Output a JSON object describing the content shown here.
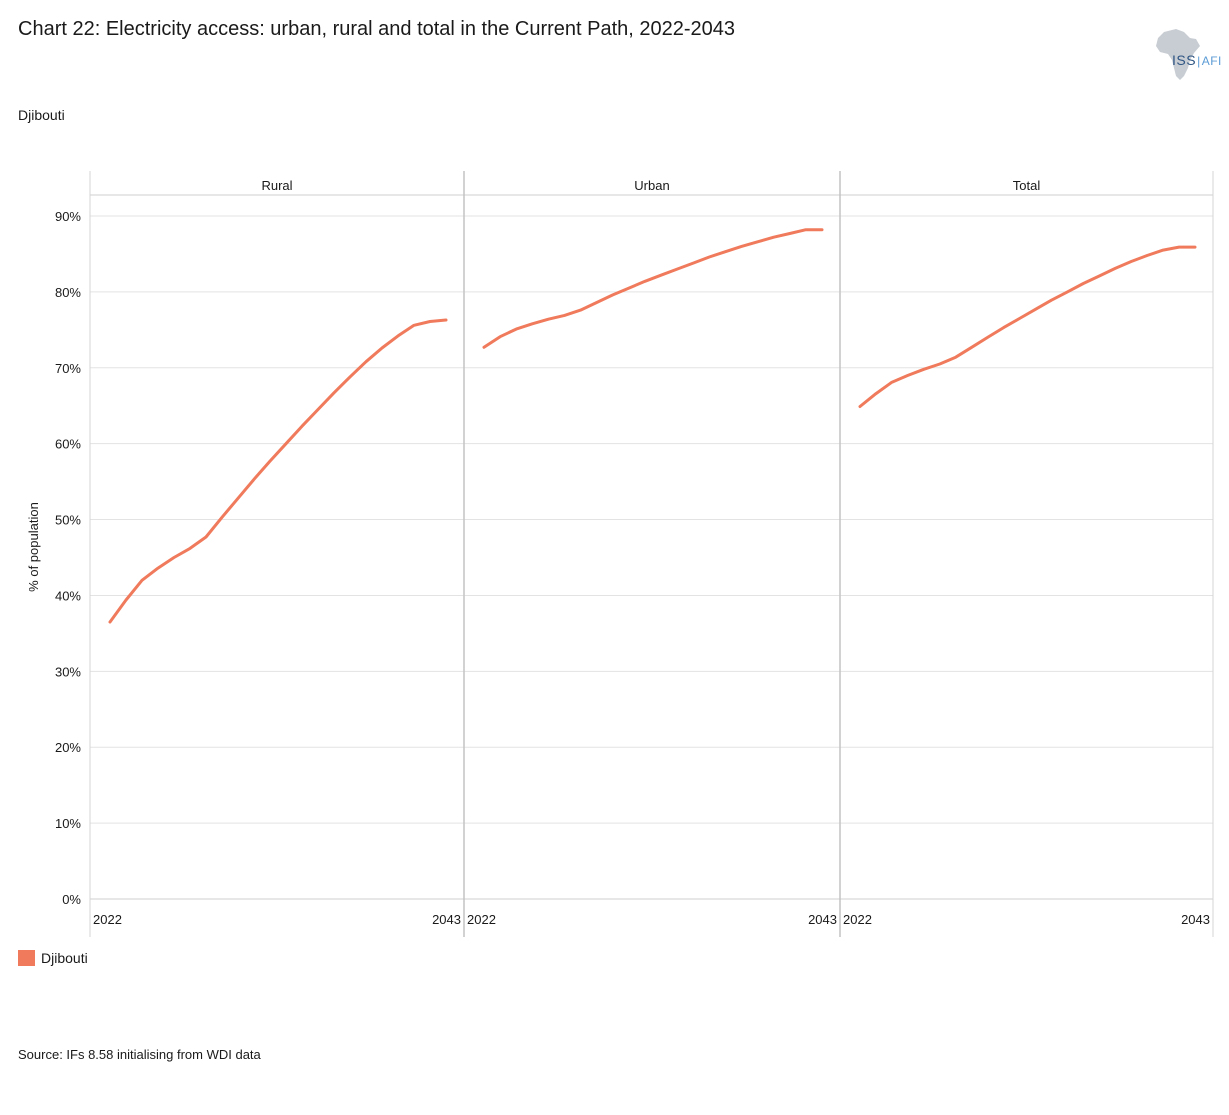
{
  "title": "Chart 22: Electricity access: urban, rural and total in the Current Path, 2022-2043",
  "subtitle": "Djibouti",
  "logo": {
    "icon": "africa-map-icon",
    "text": "ISS",
    "suffix": "AFI"
  },
  "legend": {
    "label": "Djibouti",
    "color": "#f07a5c"
  },
  "source": "Source: IFs 8.58 initialising from WDI data",
  "chart_data": {
    "type": "line",
    "ylabel": "% of population",
    "ylim": [
      0,
      90
    ],
    "yticks": [
      0,
      10,
      20,
      30,
      40,
      50,
      60,
      70,
      80,
      90
    ],
    "ytick_labels": [
      "0%",
      "10%",
      "20%",
      "30%",
      "40%",
      "50%",
      "60%",
      "70%",
      "80%",
      "90%"
    ],
    "grid": true,
    "color": "#f07a5c",
    "x": [
      2022,
      2023,
      2024,
      2025,
      2026,
      2027,
      2028,
      2029,
      2030,
      2031,
      2032,
      2033,
      2034,
      2035,
      2036,
      2037,
      2038,
      2039,
      2040,
      2041,
      2042,
      2043
    ],
    "xtick_labels": [
      "2022",
      "2043"
    ],
    "panels": [
      {
        "title": "Rural",
        "series": [
          {
            "name": "Djibouti",
            "values": [
              36.5,
              39.4,
              42.0,
              43.6,
              45.0,
              46.2,
              47.7,
              50.3,
              52.8,
              55.3,
              57.7,
              60.0,
              62.3,
              64.5,
              66.7,
              68.8,
              70.8,
              72.6,
              74.2,
              75.6,
              76.1,
              76.3
            ]
          }
        ]
      },
      {
        "title": "Urban",
        "series": [
          {
            "name": "Djibouti",
            "values": [
              72.7,
              74.1,
              75.1,
              75.8,
              76.4,
              76.9,
              77.6,
              78.6,
              79.6,
              80.5,
              81.4,
              82.2,
              83.0,
              83.8,
              84.6,
              85.3,
              86.0,
              86.6,
              87.2,
              87.7,
              88.2,
              88.2
            ]
          }
        ]
      },
      {
        "title": "Total",
        "series": [
          {
            "name": "Djibouti",
            "values": [
              64.9,
              66.6,
              68.1,
              69.0,
              69.8,
              70.5,
              71.4,
              72.7,
              74.0,
              75.3,
              76.5,
              77.7,
              78.9,
              80.0,
              81.1,
              82.1,
              83.1,
              84.0,
              84.8,
              85.5,
              85.9,
              85.9
            ]
          }
        ]
      }
    ]
  }
}
